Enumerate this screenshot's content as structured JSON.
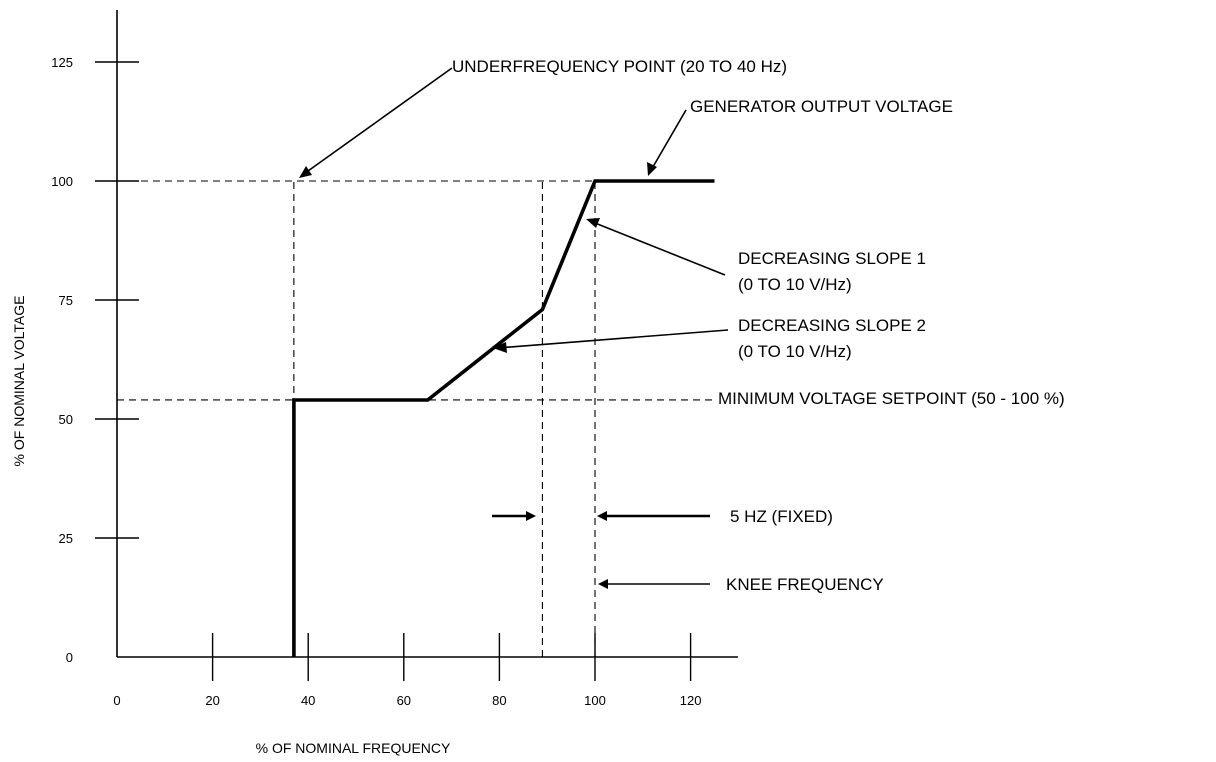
{
  "chart_data": {
    "type": "line",
    "xlabel": "% OF NOMINAL FREQUENCY",
    "ylabel": "% OF NOMINAL VOLTAGE",
    "xlim": [
      0,
      130
    ],
    "ylim": [
      0,
      135
    ],
    "x_ticks": [
      "0",
      "20",
      "40",
      "60",
      "80",
      "100",
      "120"
    ],
    "y_ticks": [
      "0",
      "25",
      "50",
      "75",
      "100",
      "125"
    ],
    "grid": false,
    "series": [
      {
        "points": [
          {
            "x": 37,
            "y": 0
          },
          {
            "x": 37,
            "y": 54
          },
          {
            "x": 65,
            "y": 54
          },
          {
            "x": 89,
            "y": 73
          },
          {
            "x": 100,
            "y": 100
          },
          {
            "x": 125,
            "y": 100
          }
        ]
      }
    ],
    "reference_lines": {
      "horizontal": [
        100,
        54
      ],
      "vertical": [
        37,
        89,
        100
      ]
    },
    "annotations": {
      "underfrequency_point": "UNDERFREQUENCY POINT (20 TO 40 Hz)",
      "generator_output_voltage": "GENERATOR OUTPUT VOLTAGE",
      "slope1_title": "DECREASING SLOPE 1",
      "slope1_range": "(0 TO 10 V/Hz)",
      "slope2_title": "DECREASING SLOPE 2",
      "slope2_range": "(0 TO 10 V/Hz)",
      "min_voltage_setpoint": "MINIMUM VOLTAGE SETPOINT (50 - 100 %)",
      "five_hz_fixed": "5 HZ (FIXED)",
      "knee_frequency": "KNEE FREQUENCY"
    }
  }
}
